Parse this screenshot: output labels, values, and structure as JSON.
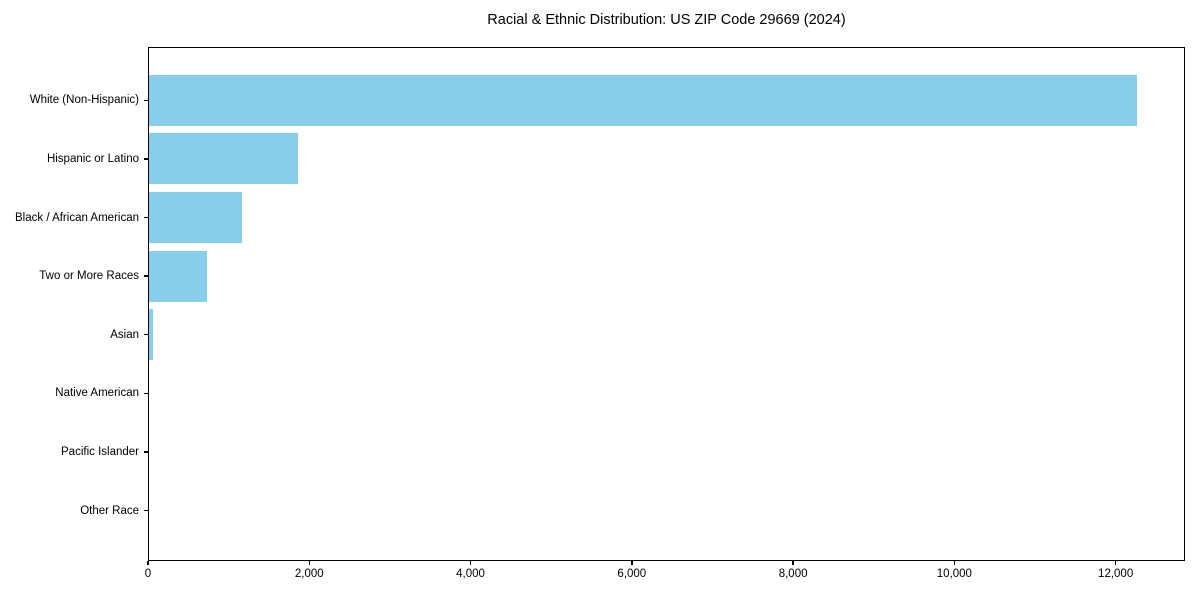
{
  "figure": {
    "background": "#ffffff"
  },
  "chart_data": {
    "type": "bar",
    "orientation": "horizontal",
    "title": "Racial & Ethnic Distribution: US ZIP Code 29669 (2024)",
    "categories": [
      "White (Non-Hispanic)",
      "Hispanic or Latino",
      "Black / African American",
      "Two or More Races",
      "Asian",
      "Native American",
      "Pacific Islander",
      "Other Race"
    ],
    "values": [
      12270,
      1860,
      1165,
      730,
      60,
      12,
      0,
      0
    ],
    "bar_color": "#87CEEB",
    "axis_color": "#000000",
    "xlim": [
      0,
      12860
    ],
    "x_ticks": [
      0,
      2000,
      4000,
      6000,
      8000,
      10000,
      12000
    ],
    "x_tick_labels": [
      "0",
      "2,000",
      "4,000",
      "6,000",
      "8,000",
      "10,000",
      "12,000"
    ],
    "xlabel": "",
    "ylabel": "",
    "grid": false,
    "legend": null,
    "value_labels_shown": false
  }
}
